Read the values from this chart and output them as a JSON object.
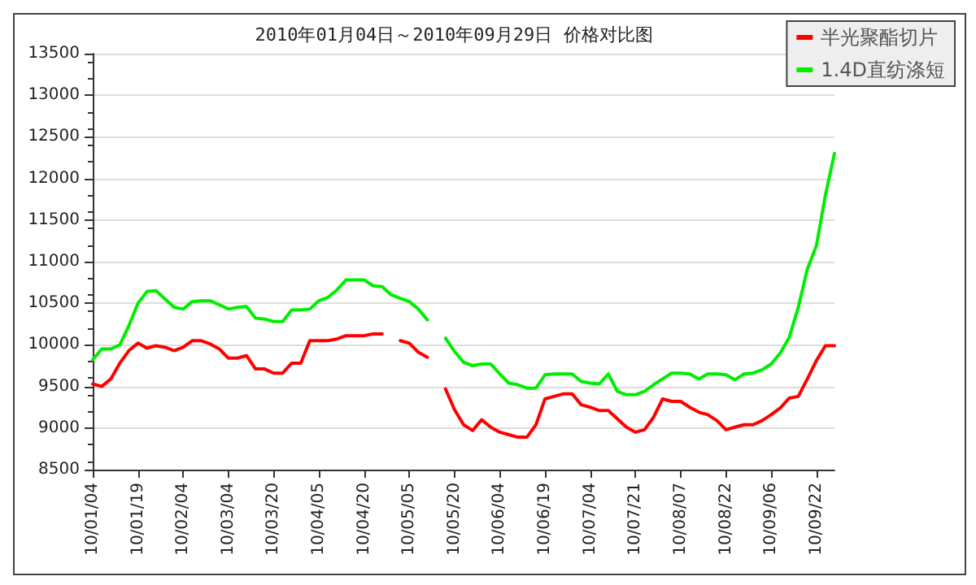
{
  "chart_data": {
    "type": "line",
    "title": "2010年01月04日～2010年09月29日 价格对比图",
    "categories": [
      "10/01/04",
      null,
      null,
      null,
      null,
      "10/01/19",
      null,
      null,
      null,
      null,
      "10/02/04",
      null,
      null,
      null,
      null,
      "10/03/04",
      null,
      null,
      null,
      null,
      "10/03/20",
      null,
      null,
      null,
      null,
      "10/04/05",
      null,
      null,
      null,
      null,
      "10/04/20",
      null,
      null,
      null,
      null,
      "10/05/05",
      null,
      null,
      null,
      null,
      "10/05/20",
      null,
      null,
      null,
      null,
      "10/06/04",
      null,
      null,
      null,
      null,
      "10/06/19",
      null,
      null,
      null,
      null,
      "10/07/04",
      null,
      null,
      null,
      null,
      "10/07/21",
      null,
      null,
      null,
      null,
      "10/08/07",
      null,
      null,
      null,
      null,
      "10/08/22",
      null,
      null,
      null,
      null,
      "10/09/06",
      null,
      null,
      null,
      null,
      "10/09/22",
      null,
      null
    ],
    "series": [
      {
        "name": "半光聚酯切片",
        "color": "#ff0000",
        "values": [
          9530,
          9500,
          9590,
          9780,
          9930,
          10020,
          9960,
          9990,
          9970,
          9930,
          9970,
          10050,
          10050,
          10010,
          9950,
          9840,
          9840,
          9870,
          9710,
          9710,
          9660,
          9660,
          9780,
          9780,
          10050,
          10050,
          10050,
          10070,
          10110,
          10110,
          10110,
          10130,
          10130,
          null,
          10050,
          10020,
          9910,
          9850,
          null,
          9470,
          9220,
          9040,
          8970,
          9100,
          9010,
          8950,
          8920,
          8890,
          8890,
          9040,
          9350,
          9380,
          9410,
          9410,
          9280,
          9250,
          9210,
          9210,
          9110,
          9010,
          8950,
          8980,
          9130,
          9350,
          9320,
          9320,
          9250,
          9190,
          9160,
          9090,
          8980,
          9010,
          9040,
          9040,
          9090,
          9160,
          9240,
          9360,
          9380,
          9590,
          9810,
          9990,
          9990
        ]
      },
      {
        "name": "1.4D直纺涤短",
        "color": "#00ee00",
        "values": [
          9820,
          9950,
          9950,
          10000,
          10230,
          10500,
          10640,
          10650,
          10550,
          10450,
          10430,
          10520,
          10530,
          10530,
          10480,
          10430,
          10450,
          10460,
          10320,
          10310,
          10280,
          10280,
          10420,
          10420,
          10430,
          10530,
          10570,
          10660,
          10780,
          10780,
          10780,
          10710,
          10700,
          10600,
          10560,
          10520,
          10430,
          10300,
          null,
          10080,
          9920,
          9790,
          9750,
          9770,
          9770,
          9650,
          9540,
          9520,
          9480,
          9480,
          9640,
          9650,
          9650,
          9650,
          9560,
          9540,
          9530,
          9650,
          9440,
          9400,
          9400,
          9440,
          9520,
          9590,
          9660,
          9660,
          9650,
          9590,
          9650,
          9650,
          9640,
          9580,
          9650,
          9660,
          9700,
          9770,
          9900,
          10090,
          10450,
          10910,
          11190,
          11800,
          12300
        ]
      }
    ],
    "ylim": [
      8500,
      13500
    ],
    "yticks": [
      8500,
      9000,
      9500,
      10000,
      10500,
      11000,
      11500,
      12000,
      12500,
      13000,
      13500
    ],
    "grid": "y",
    "legend": "top right",
    "marker": "none",
    "line_style": "solid"
  }
}
